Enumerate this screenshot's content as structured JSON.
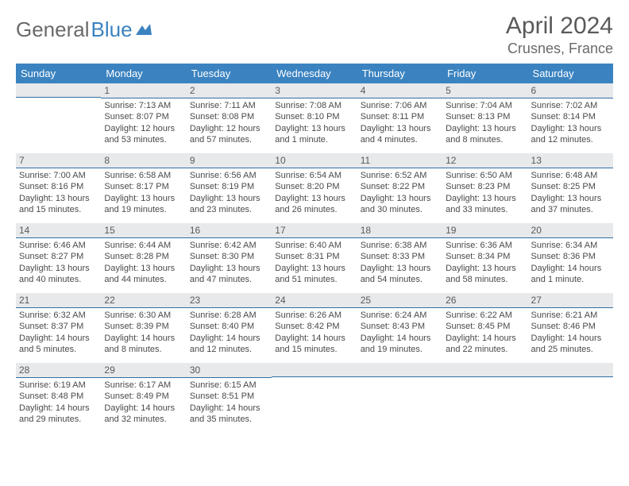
{
  "logo": {
    "text1": "General",
    "text2": "Blue"
  },
  "header": {
    "month_title": "April 2024",
    "location": "Crusnes, France"
  },
  "colors": {
    "header_bg": "#3b83c0",
    "header_text": "#ffffff",
    "daynum_bg": "#e7e9ea",
    "daynum_border": "#2f6fa6",
    "body_text": "#4a4a4a"
  },
  "weekdays": [
    "Sunday",
    "Monday",
    "Tuesday",
    "Wednesday",
    "Thursday",
    "Friday",
    "Saturday"
  ],
  "weeks": [
    [
      {
        "n": "",
        "sr": "",
        "ss": "",
        "dl": ""
      },
      {
        "n": "1",
        "sr": "Sunrise: 7:13 AM",
        "ss": "Sunset: 8:07 PM",
        "dl": "Daylight: 12 hours and 53 minutes."
      },
      {
        "n": "2",
        "sr": "Sunrise: 7:11 AM",
        "ss": "Sunset: 8:08 PM",
        "dl": "Daylight: 12 hours and 57 minutes."
      },
      {
        "n": "3",
        "sr": "Sunrise: 7:08 AM",
        "ss": "Sunset: 8:10 PM",
        "dl": "Daylight: 13 hours and 1 minute."
      },
      {
        "n": "4",
        "sr": "Sunrise: 7:06 AM",
        "ss": "Sunset: 8:11 PM",
        "dl": "Daylight: 13 hours and 4 minutes."
      },
      {
        "n": "5",
        "sr": "Sunrise: 7:04 AM",
        "ss": "Sunset: 8:13 PM",
        "dl": "Daylight: 13 hours and 8 minutes."
      },
      {
        "n": "6",
        "sr": "Sunrise: 7:02 AM",
        "ss": "Sunset: 8:14 PM",
        "dl": "Daylight: 13 hours and 12 minutes."
      }
    ],
    [
      {
        "n": "7",
        "sr": "Sunrise: 7:00 AM",
        "ss": "Sunset: 8:16 PM",
        "dl": "Daylight: 13 hours and 15 minutes."
      },
      {
        "n": "8",
        "sr": "Sunrise: 6:58 AM",
        "ss": "Sunset: 8:17 PM",
        "dl": "Daylight: 13 hours and 19 minutes."
      },
      {
        "n": "9",
        "sr": "Sunrise: 6:56 AM",
        "ss": "Sunset: 8:19 PM",
        "dl": "Daylight: 13 hours and 23 minutes."
      },
      {
        "n": "10",
        "sr": "Sunrise: 6:54 AM",
        "ss": "Sunset: 8:20 PM",
        "dl": "Daylight: 13 hours and 26 minutes."
      },
      {
        "n": "11",
        "sr": "Sunrise: 6:52 AM",
        "ss": "Sunset: 8:22 PM",
        "dl": "Daylight: 13 hours and 30 minutes."
      },
      {
        "n": "12",
        "sr": "Sunrise: 6:50 AM",
        "ss": "Sunset: 8:23 PM",
        "dl": "Daylight: 13 hours and 33 minutes."
      },
      {
        "n": "13",
        "sr": "Sunrise: 6:48 AM",
        "ss": "Sunset: 8:25 PM",
        "dl": "Daylight: 13 hours and 37 minutes."
      }
    ],
    [
      {
        "n": "14",
        "sr": "Sunrise: 6:46 AM",
        "ss": "Sunset: 8:27 PM",
        "dl": "Daylight: 13 hours and 40 minutes."
      },
      {
        "n": "15",
        "sr": "Sunrise: 6:44 AM",
        "ss": "Sunset: 8:28 PM",
        "dl": "Daylight: 13 hours and 44 minutes."
      },
      {
        "n": "16",
        "sr": "Sunrise: 6:42 AM",
        "ss": "Sunset: 8:30 PM",
        "dl": "Daylight: 13 hours and 47 minutes."
      },
      {
        "n": "17",
        "sr": "Sunrise: 6:40 AM",
        "ss": "Sunset: 8:31 PM",
        "dl": "Daylight: 13 hours and 51 minutes."
      },
      {
        "n": "18",
        "sr": "Sunrise: 6:38 AM",
        "ss": "Sunset: 8:33 PM",
        "dl": "Daylight: 13 hours and 54 minutes."
      },
      {
        "n": "19",
        "sr": "Sunrise: 6:36 AM",
        "ss": "Sunset: 8:34 PM",
        "dl": "Daylight: 13 hours and 58 minutes."
      },
      {
        "n": "20",
        "sr": "Sunrise: 6:34 AM",
        "ss": "Sunset: 8:36 PM",
        "dl": "Daylight: 14 hours and 1 minute."
      }
    ],
    [
      {
        "n": "21",
        "sr": "Sunrise: 6:32 AM",
        "ss": "Sunset: 8:37 PM",
        "dl": "Daylight: 14 hours and 5 minutes."
      },
      {
        "n": "22",
        "sr": "Sunrise: 6:30 AM",
        "ss": "Sunset: 8:39 PM",
        "dl": "Daylight: 14 hours and 8 minutes."
      },
      {
        "n": "23",
        "sr": "Sunrise: 6:28 AM",
        "ss": "Sunset: 8:40 PM",
        "dl": "Daylight: 14 hours and 12 minutes."
      },
      {
        "n": "24",
        "sr": "Sunrise: 6:26 AM",
        "ss": "Sunset: 8:42 PM",
        "dl": "Daylight: 14 hours and 15 minutes."
      },
      {
        "n": "25",
        "sr": "Sunrise: 6:24 AM",
        "ss": "Sunset: 8:43 PM",
        "dl": "Daylight: 14 hours and 19 minutes."
      },
      {
        "n": "26",
        "sr": "Sunrise: 6:22 AM",
        "ss": "Sunset: 8:45 PM",
        "dl": "Daylight: 14 hours and 22 minutes."
      },
      {
        "n": "27",
        "sr": "Sunrise: 6:21 AM",
        "ss": "Sunset: 8:46 PM",
        "dl": "Daylight: 14 hours and 25 minutes."
      }
    ],
    [
      {
        "n": "28",
        "sr": "Sunrise: 6:19 AM",
        "ss": "Sunset: 8:48 PM",
        "dl": "Daylight: 14 hours and 29 minutes."
      },
      {
        "n": "29",
        "sr": "Sunrise: 6:17 AM",
        "ss": "Sunset: 8:49 PM",
        "dl": "Daylight: 14 hours and 32 minutes."
      },
      {
        "n": "30",
        "sr": "Sunrise: 6:15 AM",
        "ss": "Sunset: 8:51 PM",
        "dl": "Daylight: 14 hours and 35 minutes."
      },
      {
        "n": "",
        "sr": "",
        "ss": "",
        "dl": ""
      },
      {
        "n": "",
        "sr": "",
        "ss": "",
        "dl": ""
      },
      {
        "n": "",
        "sr": "",
        "ss": "",
        "dl": ""
      },
      {
        "n": "",
        "sr": "",
        "ss": "",
        "dl": ""
      }
    ]
  ]
}
